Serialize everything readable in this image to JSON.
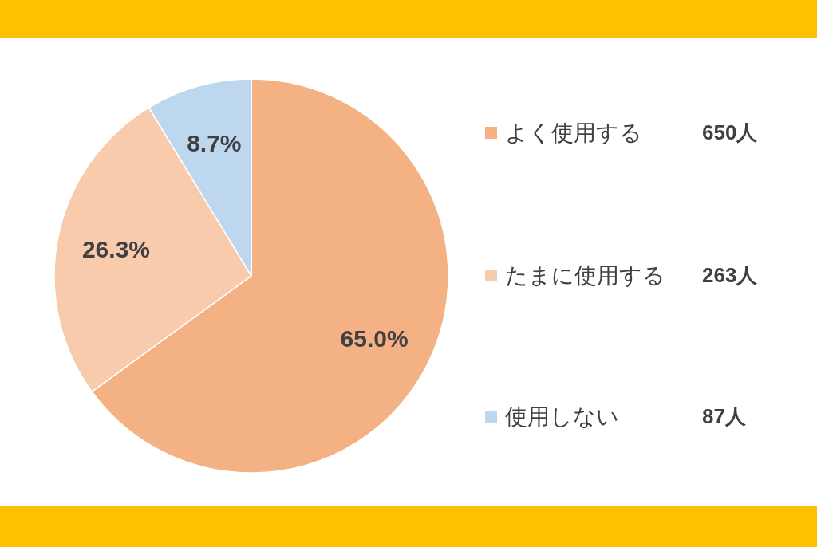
{
  "chart_data": {
    "type": "pie",
    "categories": [
      "よく使用する",
      "たまに使用する",
      "使用しない"
    ],
    "values": [
      65.0,
      26.3,
      8.7
    ],
    "colors": [
      "#f4b183",
      "#f8cbad",
      "#bdd7ee"
    ],
    "value_labels": [
      "65.0%",
      "26.3%",
      "8.7%"
    ],
    "annotations": [
      "650人",
      "263人",
      "87人"
    ],
    "legend": "right"
  }
}
